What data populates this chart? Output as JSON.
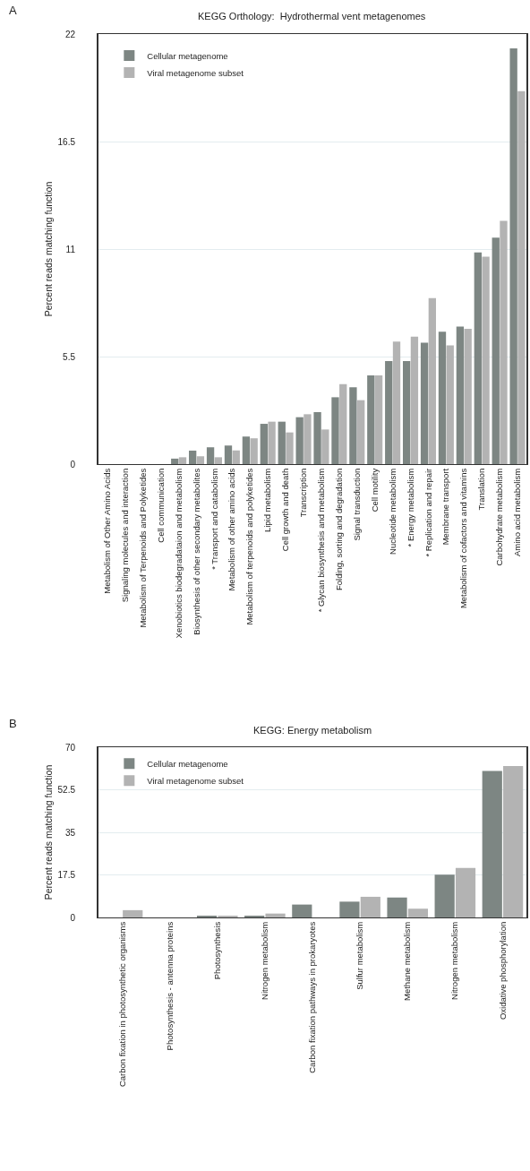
{
  "chart_data": [
    {
      "type": "bar",
      "title": "KEGG Orthology:  Hydrothermal vent metagenomes",
      "ylabel": "Percent reads matching function",
      "annotations": [
        "A"
      ],
      "categories": [
        "Metabolism of Other Amino Acids",
        "Signaling molecules and interaction",
        "Metabolism of Terpenoids and Polyketides",
        "Cell communication",
        "Xenobiotics biodegradataion and metabolism",
        "Biosynthesis of other secondary metabolites",
        "* Transport and catabolism",
        "Metabolism of other amino acids",
        "Metabolism of terpenoids and polyketides",
        "Lipid metabolism",
        "Cell growth and death",
        "Transcription",
        "* Glycan biosynthesis and metabolism",
        "Folding, sorting and degradation",
        "Signal transduction",
        "Cell motility",
        "Nucleotide metabolism",
        "* Energy metabolism",
        "* Replication and repair",
        "Membrane transport",
        "Metabolism of cofactors and vitamins",
        "Translation",
        "Carbohydrate metabolism",
        "Amino acid metabolism"
      ],
      "series": [
        {
          "name": "Cellular metagenome",
          "color": "#7d8683",
          "values": [
            0,
            0,
            0,
            0,
            0.28,
            0.69,
            0.86,
            0.95,
            1.41,
            2.06,
            2.17,
            2.4,
            2.66,
            3.42,
            3.93,
            4.54,
            5.27,
            5.27,
            6.21,
            6.77,
            7.03,
            10.83,
            11.59,
            21.27
          ]
        },
        {
          "name": "Viral metagenome subset",
          "color": "#b3b3b3",
          "values": [
            0,
            0,
            0,
            0,
            0.35,
            0.4,
            0.35,
            0.7,
            1.32,
            2.17,
            1.62,
            2.55,
            1.77,
            4.09,
            3.27,
            4.54,
            6.27,
            6.52,
            8.49,
            6.07,
            6.92,
            10.61,
            12.44,
            19.08
          ]
        }
      ],
      "ylim": [
        0,
        22
      ],
      "yticks": [
        0,
        5.5,
        11,
        16.5,
        22
      ],
      "grid": "y",
      "legend": "top left"
    },
    {
      "type": "bar",
      "title": "KEGG: Energy metabolism",
      "ylabel": "Percent reads matching function",
      "annotations": [
        "B"
      ],
      "categories": [
        "Carbon fixation in photosynthetic organisms",
        "Photosynthesis - antenna proteins",
        "Photosynthesis",
        "Nitrogen metabolism",
        "Carbon fixation pathways in prokaryotes",
        "Sulfur metabolism",
        "Methane metabolism",
        "Nitrogen metabolism",
        "Oxidative phosphorylation"
      ],
      "series": [
        {
          "name": "Cellular metagenome",
          "color": "#7d8683",
          "values": [
            0,
            0,
            0.7,
            0.7,
            5.3,
            6.5,
            8.2,
            17.6,
            60.2
          ]
        },
        {
          "name": "Viral metagenome subset",
          "color": "#b3b3b3",
          "values": [
            3.0,
            0,
            0.4,
            1.6,
            0,
            8.5,
            3.6,
            20.4,
            62.3
          ]
        }
      ],
      "ylim": [
        0,
        70
      ],
      "yticks": [
        0,
        17.5,
        35,
        52.5,
        70
      ],
      "grid": "y",
      "legend": "top left"
    }
  ]
}
